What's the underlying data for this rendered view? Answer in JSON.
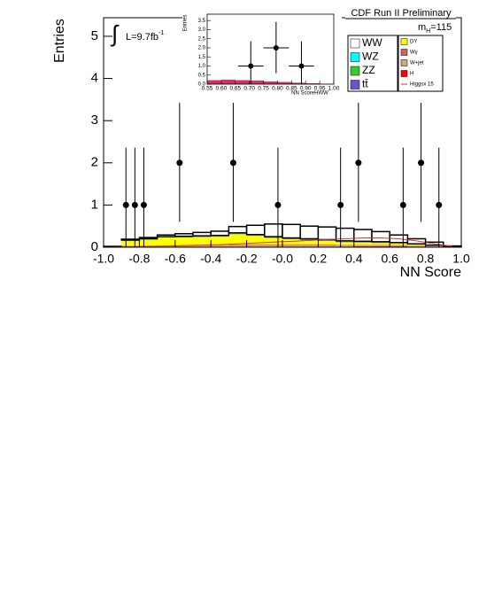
{
  "chart_data": {
    "type": "stacked_histogram",
    "title": "CDF Run II Preliminary",
    "mass_label": {
      "symbol": "m",
      "subscript": "H",
      "value": "=115"
    },
    "lumi": {
      "integral": "∫",
      "text": "L=9.7fb",
      "sup": "-1"
    },
    "y_label": "Entries",
    "x_label": "NN Score",
    "xlim": [
      -1,
      1
    ],
    "ylim": [
      0,
      5.44
    ],
    "xticks": [
      {
        "value": -1,
        "label": "-1.0"
      },
      -0.8,
      -0.6,
      -0.4,
      -0.2,
      {
        "value": 0,
        "label": "-0.0"
      },
      0.2,
      0.4,
      0.6,
      0.8,
      {
        "value": 1,
        "label": "1.0"
      }
    ],
    "yticks": [
      0,
      1,
      2,
      3,
      4,
      5
    ],
    "bins": [
      -1,
      -0.9,
      -0.8,
      -0.7,
      -0.6,
      -0.5,
      -0.4,
      -0.3,
      -0.2,
      -0.1,
      0,
      0.1,
      0.2,
      0.3,
      0.4,
      0.5,
      0.6,
      0.7,
      0.8,
      0.9,
      1
    ],
    "series": [
      {
        "name": "WW",
        "color": "#ffffff",
        "values": [
          0.01,
          0.02,
          0.03,
          0.04,
          0.06,
          0.08,
          0.1,
          0.15,
          0.22,
          0.3,
          0.32,
          0.3,
          0.3,
          0.3,
          0.28,
          0.24,
          0.18,
          0.12,
          0.07,
          0.02
        ]
      },
      {
        "name": "WZ",
        "color": "#00ffff",
        "values": [
          0,
          0.01,
          0.01,
          0.01,
          0.01,
          0.01,
          0.01,
          0.01,
          0.01,
          0.01,
          0.01,
          0.01,
          0.01,
          0.01,
          0.01,
          0.01,
          0.01,
          0.01,
          0.01,
          0
        ]
      },
      {
        "name": "ZZ",
        "color": "#33cc33",
        "values": [
          0,
          0.01,
          0.01,
          0.01,
          0.01,
          0.01,
          0.01,
          0.01,
          0.01,
          0.01,
          0.01,
          0.01,
          0.01,
          0.01,
          0.01,
          0.01,
          0.01,
          0.01,
          0,
          0
        ]
      },
      {
        "name": "tt̄",
        "color": "#6655cc",
        "values": [
          0,
          0,
          0,
          0,
          0.01,
          0.01,
          0.01,
          0.01,
          0.01,
          0.01,
          0.01,
          0.01,
          0.01,
          0.01,
          0.01,
          0.01,
          0,
          0,
          0,
          0
        ]
      },
      {
        "name": "DY",
        "color": "#ffff00",
        "values": [
          0.01,
          0.12,
          0.15,
          0.2,
          0.2,
          0.2,
          0.2,
          0.25,
          0.2,
          0.15,
          0.12,
          0.1,
          0.08,
          0.06,
          0.05,
          0.04,
          0.03,
          0.02,
          0.01,
          0
        ]
      },
      {
        "name": "Wγ",
        "color": "#cc6666",
        "values": [
          0,
          0.01,
          0.01,
          0.01,
          0.01,
          0.01,
          0.01,
          0.02,
          0.02,
          0.02,
          0.02,
          0.02,
          0.02,
          0.01,
          0.01,
          0.01,
          0.01,
          0.01,
          0.01,
          0
        ]
      },
      {
        "name": "W+jet",
        "color": "#d2a679",
        "values": [
          0,
          0.02,
          0.02,
          0.02,
          0.02,
          0.03,
          0.03,
          0.03,
          0.04,
          0.04,
          0.04,
          0.04,
          0.04,
          0.04,
          0.03,
          0.03,
          0.03,
          0.02,
          0.01,
          0.01
        ]
      },
      {
        "name": "H",
        "color": "#ff0000",
        "values": [
          0,
          0,
          0,
          0,
          0,
          0,
          0.01,
          0.01,
          0.01,
          0.01,
          0.01,
          0.01,
          0.01,
          0.01,
          0.02,
          0.02,
          0.02,
          0.01,
          0.01,
          0
        ]
      },
      {
        "name": "Higgsx 15",
        "color": "#dd3333",
        "line": true,
        "values": [
          0,
          0.01,
          0.02,
          0.03,
          0.04,
          0.05,
          0.06,
          0.08,
          0.1,
          0.12,
          0.14,
          0.16,
          0.18,
          0.2,
          0.22,
          0.22,
          0.2,
          0.15,
          0.08,
          0.02
        ]
      }
    ],
    "data_points": {
      "x": [
        -0.875,
        -0.825,
        -0.775,
        -0.575,
        -0.275,
        -0.025,
        0.325,
        0.425,
        0.675,
        0.775,
        0.875
      ],
      "values": [
        1,
        1,
        1,
        2,
        2,
        1,
        1,
        2,
        1,
        2,
        1
      ],
      "errors_low": [
        1,
        1,
        1,
        1.4,
        1.4,
        1,
        1,
        1.4,
        1,
        1.4,
        1
      ],
      "errors_high": [
        1.36,
        1.36,
        1.36,
        1.42,
        1.42,
        1.36,
        1.36,
        1.42,
        1.36,
        1.42,
        1.36
      ]
    },
    "inset": {
      "y_label": "Entries",
      "x_label": "NN ScoreHWW",
      "xlim": [
        0.55,
        1
      ],
      "ylim": [
        0,
        3.85
      ],
      "xticks": [
        0.55,
        {
          "value": 0.6,
          "label": "0.60"
        },
        0.65,
        {
          "value": 0.7,
          "label": "0.70"
        },
        0.75,
        {
          "value": 0.8,
          "label": "0.80"
        },
        0.85,
        {
          "value": 0.9,
          "label": "0.90"
        },
        0.95,
        {
          "value": 1,
          "label": "1.00"
        }
      ],
      "yticks": [
        {
          "value": 0,
          "label": "0.0"
        },
        0.5,
        {
          "value": 1,
          "label": "1.0"
        },
        1.5,
        {
          "value": 2,
          "label": "2.0"
        },
        2.5,
        {
          "value": 3,
          "label": "3.0"
        },
        3.5
      ],
      "bins": [
        0.55,
        0.6,
        0.65,
        0.7,
        0.75,
        0.8,
        0.85,
        0.9,
        0.95,
        1
      ],
      "background": [
        0.22,
        0.25,
        0.22,
        0.2,
        0.15,
        0.12,
        0.08,
        0.05,
        0.02
      ],
      "background_color": "#cc3366",
      "data_points": {
        "x": [
          0.705,
          0.795,
          0.885
        ],
        "values": [
          1,
          2,
          1
        ],
        "errors_low": [
          1,
          1.4,
          1
        ],
        "errors_high": [
          1.36,
          1.42,
          1.36
        ]
      }
    }
  }
}
